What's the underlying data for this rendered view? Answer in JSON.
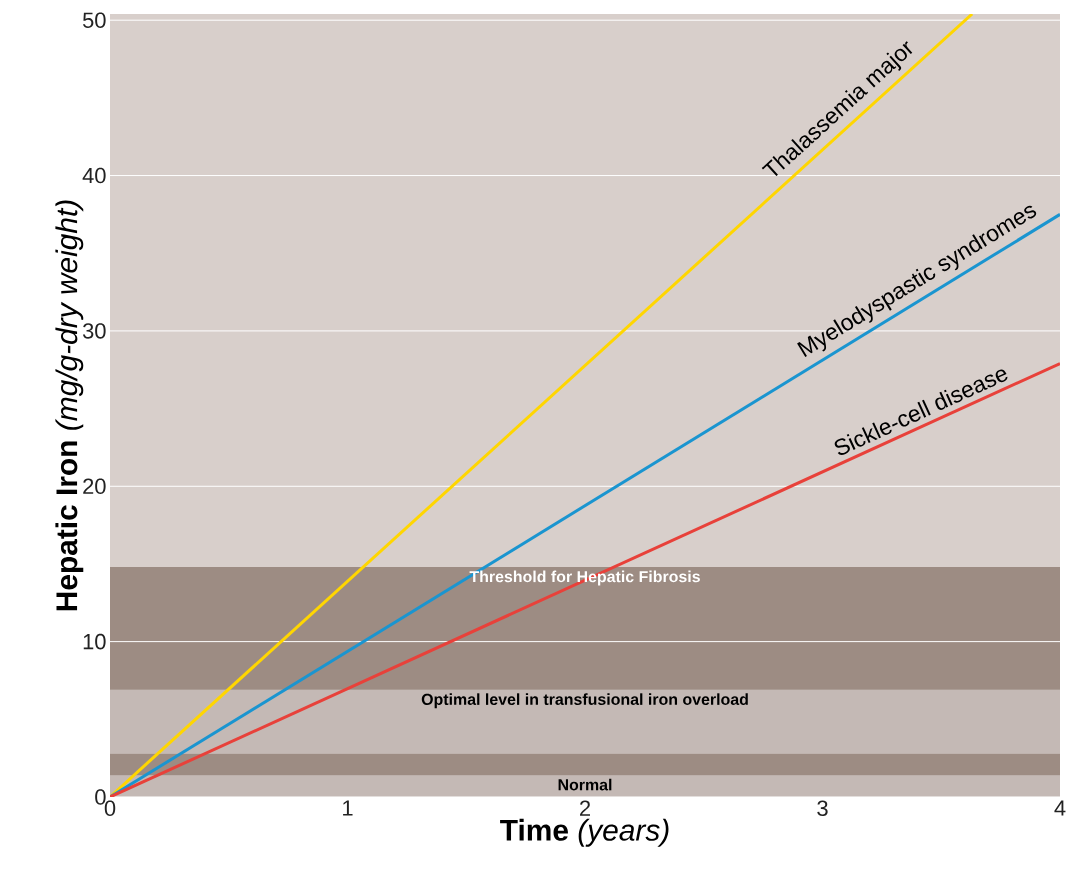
{
  "chart_data": {
    "type": "line",
    "xlabel": "**Time** *(years)*",
    "ylabel": "**Hepatic Iron** *(mg/g-dry weight)*",
    "xlim": [
      0,
      4
    ],
    "ylim": [
      0,
      50.4
    ],
    "xticks": [
      0,
      1,
      2,
      3,
      4
    ],
    "yticks": [
      0,
      10,
      20,
      30,
      40,
      50
    ],
    "grid": "y",
    "legend": false,
    "marker": "none",
    "line_style": "solid",
    "series": [
      {
        "name": "Thalassemia major",
        "color": "#ffd600",
        "x": [
          0,
          3.63
        ],
        "values": [
          0,
          50.4
        ]
      },
      {
        "name": "Myelodyspastic syndromes",
        "color": "#1a95d0",
        "x": [
          0,
          4
        ],
        "values": [
          0,
          37.5
        ]
      },
      {
        "name": "Sickle-cell disease",
        "color": "#e8413a",
        "x": [
          0,
          4
        ],
        "values": [
          0,
          27.9
        ]
      }
    ],
    "bands": [
      {
        "axis": "y",
        "from": 0,
        "to": 1.4,
        "label": "Normal",
        "color": "#c4b9b5"
      },
      {
        "axis": "y",
        "from": 1.4,
        "to": 2.8,
        "color": "#9d8c83"
      },
      {
        "axis": "y",
        "from": 2.8,
        "to": 6.9,
        "label": "Optimal level in transfusional iron overload",
        "color": "#c4b9b5"
      },
      {
        "axis": "y",
        "from": 6.9,
        "to": 14.8,
        "label": "Threshold for Hepatic Fibrosis",
        "color": "#9d8c83"
      }
    ]
  }
}
